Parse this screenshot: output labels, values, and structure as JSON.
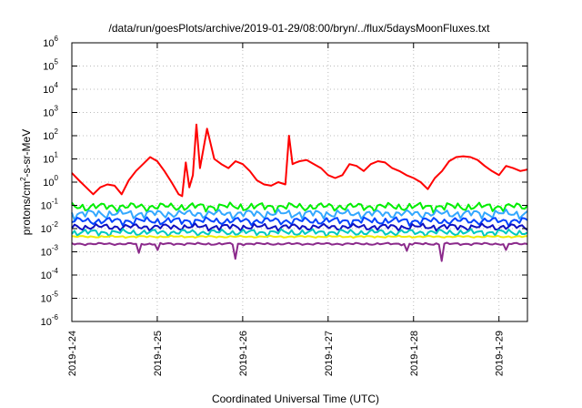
{
  "chart_data": {
    "type": "line",
    "title": "/data/run/goesPlots/archive/2019-01-29/08:00/bryn/../flux/5daysMoonFluxes.txt",
    "xlabel": "Coordinated Universal Time (UTC)",
    "ylabel_parts": [
      "protons/cm",
      "2",
      "-s-sr-MeV"
    ],
    "yscale": "log",
    "ylim": [
      1e-06,
      1000000.0
    ],
    "xlim": [
      "2019-01-24",
      "2019-01-29T08:00"
    ],
    "grid": true,
    "y_ticks": [
      {
        "base": "10",
        "exp": "-6"
      },
      {
        "base": "10",
        "exp": "-5"
      },
      {
        "base": "10",
        "exp": "-4"
      },
      {
        "base": "10",
        "exp": "-3"
      },
      {
        "base": "10",
        "exp": "-2"
      },
      {
        "base": "10",
        "exp": "-1"
      },
      {
        "base": "10",
        "exp": "0"
      },
      {
        "base": "10",
        "exp": "1"
      },
      {
        "base": "10",
        "exp": "2"
      },
      {
        "base": "10",
        "exp": "3"
      },
      {
        "base": "10",
        "exp": "4"
      },
      {
        "base": "10",
        "exp": "5"
      },
      {
        "base": "10",
        "exp": "6"
      }
    ],
    "x_ticks": [
      "2019-1-24",
      "2019-1-25",
      "2019-1-26",
      "2019-1-27",
      "2019-1-28",
      "2019-1-29"
    ],
    "series": [
      {
        "color": "#ff0000",
        "x": [
          "2019-01-24T00:00",
          "2019-01-24T02:00",
          "2019-01-24T04:00",
          "2019-01-24T06:00",
          "2019-01-24T08:00",
          "2019-01-24T10:00",
          "2019-01-24T12:00",
          "2019-01-24T14:00",
          "2019-01-24T16:00",
          "2019-01-24T18:00",
          "2019-01-24T20:00",
          "2019-01-24T22:00",
          "2019-01-25T00:00",
          "2019-01-25T02:00",
          "2019-01-25T04:00",
          "2019-01-25T06:00",
          "2019-01-25T07:00",
          "2019-01-25T08:00",
          "2019-01-25T09:00",
          "2019-01-25T10:00",
          "2019-01-25T11:00",
          "2019-01-25T12:00",
          "2019-01-25T14:00",
          "2019-01-25T16:00",
          "2019-01-25T18:00",
          "2019-01-25T20:00",
          "2019-01-25T22:00",
          "2019-01-26T00:00",
          "2019-01-26T02:00",
          "2019-01-26T04:00",
          "2019-01-26T06:00",
          "2019-01-26T08:00",
          "2019-01-26T10:00",
          "2019-01-26T12:00",
          "2019-01-26T13:00",
          "2019-01-26T14:00",
          "2019-01-26T15:00",
          "2019-01-26T16:00",
          "2019-01-26T18:00",
          "2019-01-26T20:00",
          "2019-01-26T22:00",
          "2019-01-27T00:00",
          "2019-01-27T02:00",
          "2019-01-27T04:00",
          "2019-01-27T06:00",
          "2019-01-27T08:00",
          "2019-01-27T10:00",
          "2019-01-27T12:00",
          "2019-01-27T14:00",
          "2019-01-27T16:00",
          "2019-01-27T18:00",
          "2019-01-27T20:00",
          "2019-01-27T22:00",
          "2019-01-28T00:00",
          "2019-01-28T02:00",
          "2019-01-28T04:00",
          "2019-01-28T06:00",
          "2019-01-28T08:00",
          "2019-01-28T10:00",
          "2019-01-28T12:00",
          "2019-01-28T14:00",
          "2019-01-28T16:00",
          "2019-01-28T18:00",
          "2019-01-28T20:00",
          "2019-01-28T22:00",
          "2019-01-29T00:00",
          "2019-01-29T02:00",
          "2019-01-29T04:00",
          "2019-01-29T06:00",
          "2019-01-29T08:00"
        ],
        "values": [
          2.5,
          1.2,
          0.6,
          0.3,
          0.6,
          0.8,
          0.7,
          0.3,
          1.2,
          3,
          6,
          12,
          8,
          3,
          1,
          0.3,
          0.25,
          7,
          0.6,
          2,
          300,
          4,
          200,
          10,
          6,
          4,
          8,
          6,
          3,
          1.2,
          0.8,
          0.7,
          1,
          0.8,
          100,
          6,
          7,
          8,
          9,
          6,
          4,
          2,
          1.5,
          2,
          6,
          5,
          3,
          6,
          8,
          7,
          4,
          3,
          2,
          1.5,
          1,
          0.5,
          1.5,
          3,
          8,
          12,
          13,
          12,
          9,
          5,
          3,
          2,
          5,
          4,
          3,
          3.5
        ]
      },
      {
        "color": "#00ee00",
        "base": 0.09,
        "variation": 0.45,
        "dips": []
      },
      {
        "color": "#33a8ff",
        "base": 0.045,
        "variation": 0.45,
        "dips": []
      },
      {
        "color": "#0044ff",
        "base": 0.022,
        "variation": 0.4,
        "dips": []
      },
      {
        "color": "#1010c0",
        "base": 0.012,
        "variation": 0.35,
        "dips": []
      },
      {
        "color": "#00c8c0",
        "base": 0.007,
        "variation": 0.35,
        "dips": []
      },
      {
        "color": "#eeee00",
        "base": 0.0045,
        "variation": 0.1,
        "dips": []
      },
      {
        "color": "#8b2a8b",
        "base": 0.0022,
        "variation": 0.12,
        "dips": [
          {
            "x": "2019-01-24T19:00",
            "value": 0.0009
          },
          {
            "x": "2019-01-25T00:00",
            "value": 0.0012
          },
          {
            "x": "2019-01-25T22:00",
            "value": 0.0005
          },
          {
            "x": "2019-01-27T22:00",
            "value": 0.0011
          },
          {
            "x": "2019-01-28T08:00",
            "value": 0.0004
          },
          {
            "x": "2019-01-29T02:00",
            "value": 0.0012
          }
        ]
      }
    ]
  }
}
